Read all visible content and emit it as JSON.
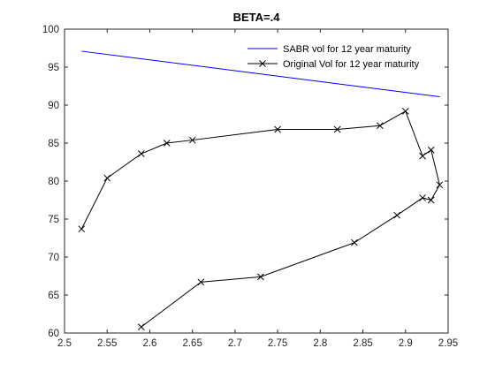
{
  "chart_data": {
    "type": "line",
    "title": "BETA=.4",
    "xlabel": "",
    "ylabel": "",
    "xlim": [
      2.5,
      2.95
    ],
    "ylim": [
      60,
      100
    ],
    "x_ticks": [
      2.5,
      2.55,
      2.6,
      2.65,
      2.7,
      2.75,
      2.8,
      2.85,
      2.9,
      2.95
    ],
    "x_tick_labels": [
      "2.5",
      "2.55",
      "2.6",
      "2.65",
      "2.7",
      "2.75",
      "2.8",
      "2.85",
      "2.9",
      "2.95"
    ],
    "y_ticks": [
      60,
      65,
      70,
      75,
      80,
      85,
      90,
      95,
      100
    ],
    "y_tick_labels": [
      "60",
      "65",
      "70",
      "75",
      "80",
      "85",
      "90",
      "95",
      "100"
    ],
    "grid": false,
    "legend_position": "top-right",
    "series": [
      {
        "name": "SABR vol for 12 year maturity",
        "color": "#0000ff",
        "marker": "none",
        "x": [
          2.52,
          2.94
        ],
        "y": [
          97.1,
          91.1
        ]
      },
      {
        "name": "Original Vol for 12 year maturity",
        "color": "#000000",
        "marker": "x",
        "x": [
          2.52,
          2.55,
          2.59,
          2.62,
          2.65,
          2.75,
          2.82,
          2.87,
          2.9,
          2.92,
          2.93,
          2.94,
          2.93,
          2.92,
          2.89,
          2.84,
          2.73,
          2.66,
          2.59
        ],
        "y": [
          73.7,
          80.4,
          83.6,
          85.0,
          85.4,
          86.8,
          86.8,
          87.3,
          89.2,
          83.3,
          84.1,
          79.5,
          77.5,
          77.8,
          75.5,
          71.9,
          67.4,
          66.7,
          60.8
        ]
      }
    ]
  }
}
